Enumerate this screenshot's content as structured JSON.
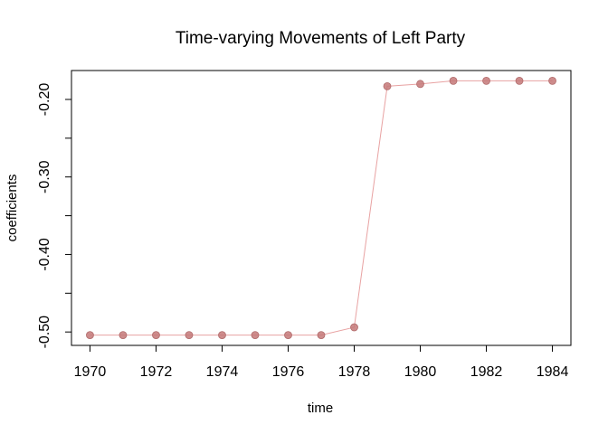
{
  "chart_data": {
    "type": "line",
    "title": "Time-varying Movements of Left Party",
    "xlabel": "time",
    "ylabel": "coefficients",
    "x": [
      1970,
      1971,
      1972,
      1973,
      1974,
      1975,
      1976,
      1977,
      1978,
      1979,
      1980,
      1981,
      1982,
      1983,
      1984
    ],
    "series": [
      {
        "values": [
          -0.504,
          -0.504,
          -0.504,
          -0.504,
          -0.504,
          -0.504,
          -0.504,
          -0.504,
          -0.494,
          -0.183,
          -0.18,
          -0.176,
          -0.176,
          -0.176,
          -0.176
        ]
      }
    ],
    "xticks": [
      1970,
      1972,
      1974,
      1976,
      1978,
      1980,
      1982,
      1984
    ],
    "yticks": [
      -0.5,
      -0.45,
      -0.4,
      -0.35,
      -0.3,
      -0.25,
      -0.2
    ],
    "ytick_labels": [
      "-0.50",
      "",
      "-0.40",
      "",
      "-0.30",
      "",
      "-0.20"
    ],
    "xlim": [
      1969.44,
      1984.56
    ],
    "ylim": [
      -0.5173,
      -0.1627
    ],
    "grid": false,
    "colors": {
      "line": "#e8a2a2",
      "marker": "#c47878",
      "marker_edge": "#b06a6a"
    }
  }
}
